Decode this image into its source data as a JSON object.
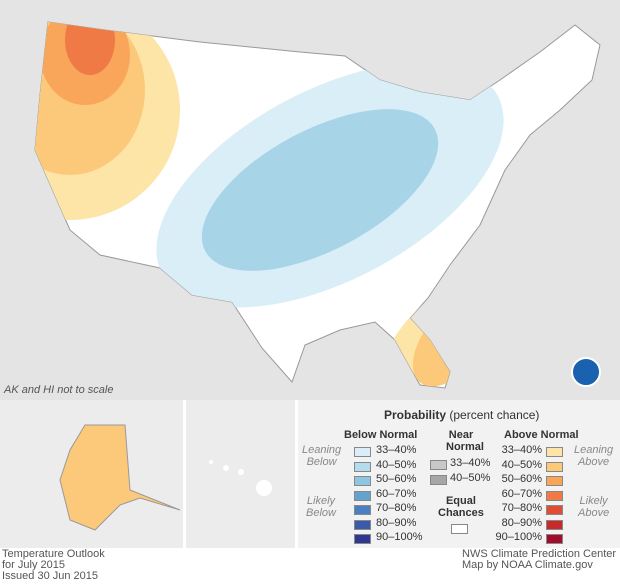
{
  "map": {
    "note": "AK and HI not to scale",
    "logo": "NOAA"
  },
  "legend": {
    "title": "Probability",
    "subtitle": "(percent chance)",
    "below_header": "Below Normal",
    "near_header_1": "Near",
    "near_header_2": "Normal",
    "above_header": "Above Normal",
    "leaning_below": [
      "Leaning",
      "Below"
    ],
    "likely_below": [
      "Likely",
      "Below"
    ],
    "leaning_above": [
      "Leaning",
      "Above"
    ],
    "likely_above": [
      "Likely",
      "Above"
    ],
    "equal_1": "Equal",
    "equal_2": "Chances",
    "below": [
      {
        "label": "33–40%",
        "color": "#d9eef6"
      },
      {
        "label": "40–50%",
        "color": "#b3dcec"
      },
      {
        "label": "50–60%",
        "color": "#8ec5e0"
      },
      {
        "label": "60–70%",
        "color": "#64a3cf"
      },
      {
        "label": "70–80%",
        "color": "#4a80c1"
      },
      {
        "label": "80–90%",
        "color": "#3c5aaa"
      },
      {
        "label": "90–100%",
        "color": "#2e3791"
      }
    ],
    "near": [
      {
        "label": "33–40%",
        "color": "#c8c8c8"
      },
      {
        "label": "40–50%",
        "color": "#a6a6a6"
      }
    ],
    "above": [
      {
        "label": "33–40%",
        "color": "#fde5a8"
      },
      {
        "label": "40–50%",
        "color": "#fcc97a"
      },
      {
        "label": "50–60%",
        "color": "#f9a55a"
      },
      {
        "label": "60–70%",
        "color": "#f07a45"
      },
      {
        "label": "70–80%",
        "color": "#e04d34"
      },
      {
        "label": "80–90%",
        "color": "#c62a2a"
      },
      {
        "label": "90–100%",
        "color": "#a30b2a"
      }
    ]
  },
  "footer": {
    "left": [
      "Temperature Outlook",
      "for July 2015",
      "Issued 30 Jun 2015"
    ],
    "right": [
      "NWS Climate Prediction Center",
      "Map by NOAA Climate.gov"
    ]
  }
}
